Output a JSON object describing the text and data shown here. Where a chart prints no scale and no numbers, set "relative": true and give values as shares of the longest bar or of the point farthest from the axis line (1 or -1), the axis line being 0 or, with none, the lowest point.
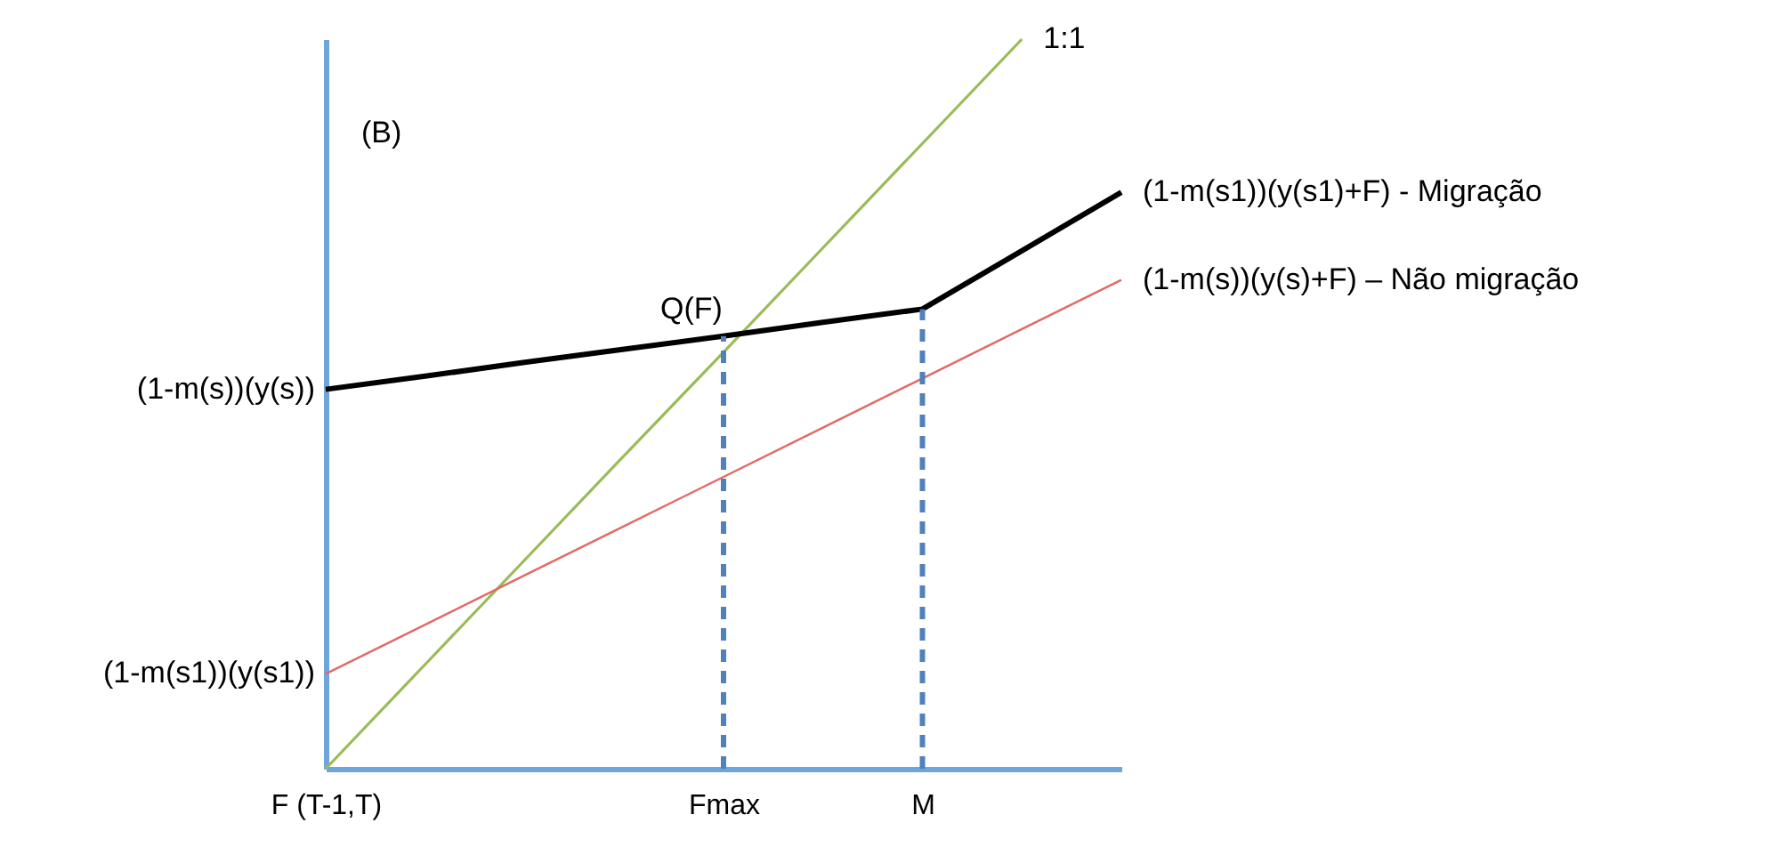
{
  "chart_data": {
    "type": "line",
    "relative": true,
    "legend": false,
    "marker": "none",
    "tick_labels": "x",
    "categories": [
      "F (T-1,T)",
      null,
      null,
      null,
      "Fmax",
      null,
      "M",
      null,
      null
    ],
    "series": [
      {
        "name": "1:1",
        "color": "#9bbb59",
        "values": [
          0,
          0.143,
          0.286,
          0.429,
          0.571,
          0.714,
          0.857,
          1,
          null
        ],
        "line_style": "solid"
      },
      {
        "name": "(1-m(s))(y(s)+F) – Não migração",
        "color": "#e06a66",
        "values": [
          0.13,
          0.1975,
          0.265,
          0.3325,
          0.4,
          0.4675,
          0.535,
          0.6025,
          0.67
        ],
        "line_style": "solid"
      },
      {
        "name": "(1-m(s1))(y(s1)+F) - Migração",
        "color": "#000000",
        "values": [
          0.52,
          0.538,
          0.557,
          0.575,
          0.593,
          0.612,
          0.63,
          0.71,
          0.79
        ],
        "line_style": "solid"
      },
      {
        "color": "#4f81bd",
        "x": [
          "Fmax",
          "Fmax"
        ],
        "values": [
          0,
          0.593
        ],
        "line_style": "dashed"
      },
      {
        "color": "#4f81bd",
        "x": [
          "M",
          "M"
        ],
        "values": [
          0,
          0.63
        ],
        "line_style": "dashed"
      }
    ],
    "annotations": [
      "(B)",
      {
        "text": "Q(F)",
        "x": "Fmax",
        "y": 0.593
      },
      {
        "text": "(1-m(s))(y(s))",
        "x": "F (T-1,T)",
        "y": 0.52
      },
      {
        "text": "(1-m(s1))(y(s1))",
        "x": "F (T-1,T)",
        "y": 0.13
      }
    ]
  }
}
